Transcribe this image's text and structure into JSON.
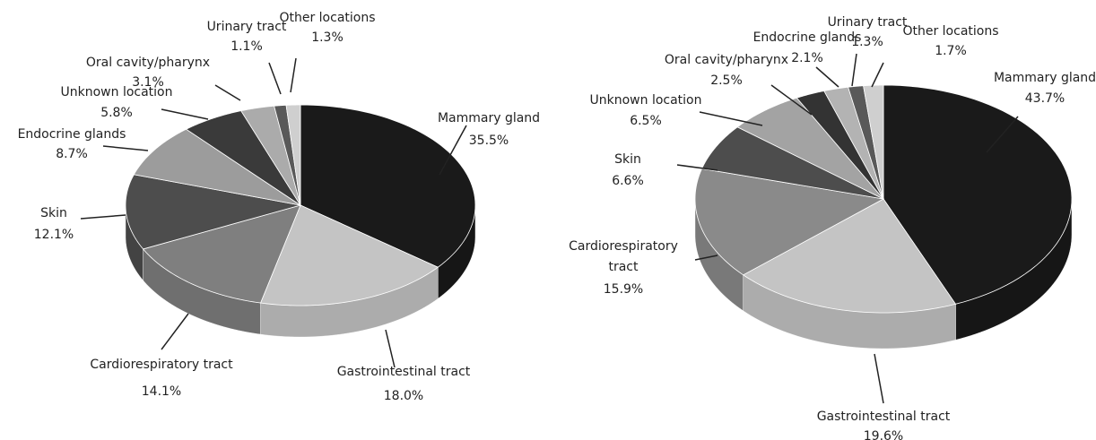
{
  "chart_data": [
    {
      "type": "pie",
      "categories": [
        "Mammary gland",
        "Gastrointestinal tract",
        "Cardiorespiratory tract",
        "Skin",
        "Endocrine glands",
        "Unknown location",
        "Oral cavity/pharynx",
        "Urinary tract",
        "Other locations"
      ],
      "values": [
        35.5,
        18.0,
        14.1,
        12.1,
        8.7,
        5.8,
        3.1,
        1.1,
        1.3
      ],
      "value_labels": [
        "35.5%",
        "18.0%",
        "14.1%",
        "12.1%",
        "8.7%",
        "5.8%",
        "3.1%",
        "1.1%",
        "1.3%"
      ],
      "colors": [
        "#1a1a1a",
        "#c4c4c4",
        "#7f7f7f",
        "#4d4d4d",
        "#9c9c9c",
        "#3a3a3a",
        "#ababab",
        "#595959",
        "#cfcfcf"
      ]
    },
    {
      "type": "pie",
      "categories": [
        "Mammary gland",
        "Gastrointestinal tract",
        "Cardiorespiratory tract",
        "Skin",
        "Unknown location",
        "Oral cavity/pharynx",
        "Endocrine glands",
        "Urinary tract",
        "Other locations"
      ],
      "values": [
        43.7,
        19.6,
        15.9,
        6.6,
        6.5,
        2.5,
        2.1,
        1.3,
        1.7
      ],
      "value_labels": [
        "43.7%",
        "19.6%",
        "15.9%",
        "6.6%",
        "6.5%",
        "2.5%",
        "2.1%",
        "1.3%",
        "1.7%"
      ],
      "colors": [
        "#1a1a1a",
        "#c4c4c4",
        "#8a8a8a",
        "#4d4d4d",
        "#a3a3a3",
        "#333333",
        "#b3b3b3",
        "#595959",
        "#cfcfcf"
      ]
    }
  ]
}
